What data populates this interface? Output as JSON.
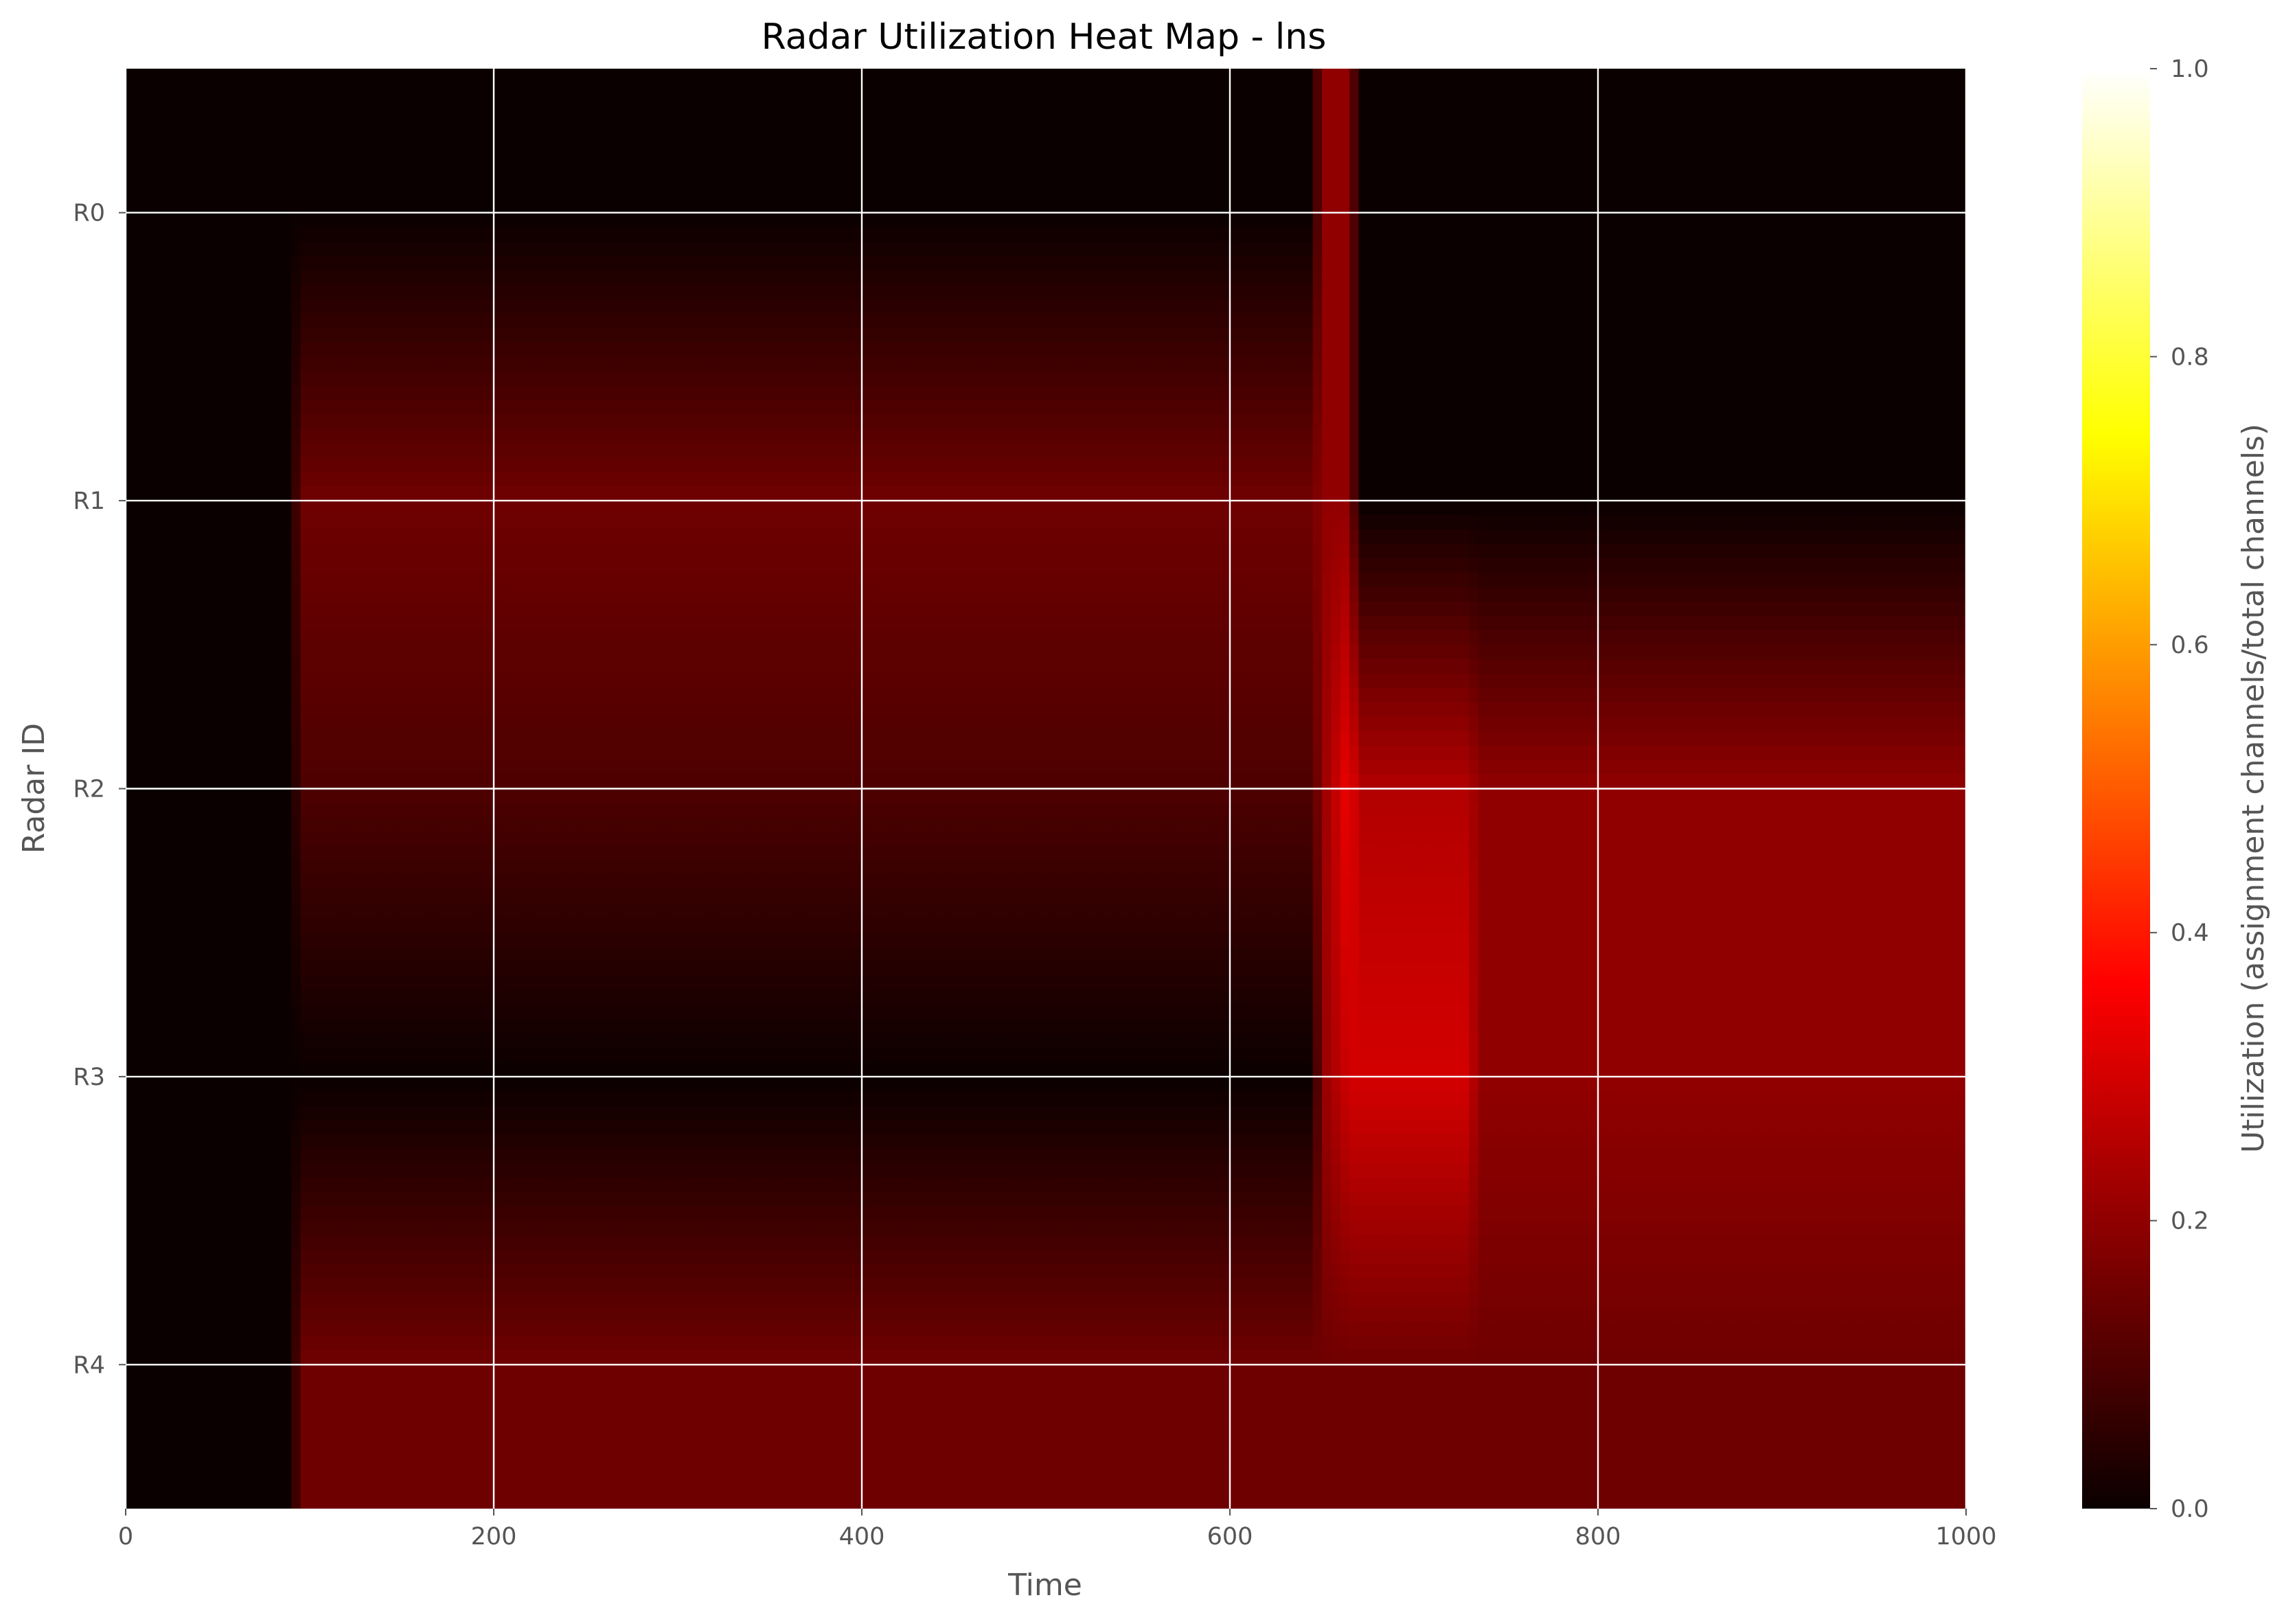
{
  "chart_data": {
    "type": "heatmap",
    "title": "Radar Utilization Heat Map - lns",
    "xlabel": "Time",
    "ylabel": "Radar ID",
    "colorbar_label": "Utilization (assignment channels/total channels)",
    "colormap": "hot",
    "xlim": [
      0,
      1000
    ],
    "clim": [
      0,
      1
    ],
    "x_ticks": [
      0,
      200,
      400,
      600,
      800,
      1000
    ],
    "colorbar_ticks": [
      "0.0",
      "0.2",
      "0.4",
      "0.6",
      "0.8",
      "1.0"
    ],
    "colorbar_tick_values": [
      0,
      0.2,
      0.4,
      0.6,
      0.8,
      1.0
    ],
    "rows": [
      "R0",
      "R1",
      "R2",
      "R3",
      "R4"
    ],
    "interpolation": "bilinear",
    "grid": true,
    "x": [
      0,
      90,
      95,
      645,
      650,
      665,
      670,
      730,
      735,
      1000
    ],
    "values": [
      [
        0.0,
        0.0,
        0.0,
        0.0,
        0.2,
        0.2,
        0.0,
        0.0,
        0.0,
        0.0
      ],
      [
        0.0,
        0.0,
        0.15,
        0.15,
        0.2,
        0.2,
        0.0,
        0.0,
        0.0,
        0.0
      ],
      [
        0.0,
        0.0,
        0.1,
        0.1,
        0.2,
        0.35,
        0.25,
        0.25,
        0.2,
        0.2
      ],
      [
        0.0,
        0.0,
        0.0,
        0.0,
        0.2,
        0.3,
        0.3,
        0.3,
        0.2,
        0.2
      ],
      [
        0.0,
        0.0,
        0.15,
        0.15,
        0.15,
        0.15,
        0.15,
        0.15,
        0.15,
        0.15
      ]
    ]
  }
}
